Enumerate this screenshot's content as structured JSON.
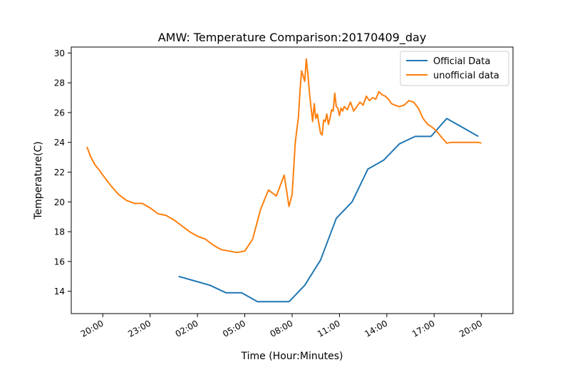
{
  "chart_data": {
    "type": "line",
    "title": "AMW: Temperature Comparison:20170409_day",
    "xlabel": "Time (Hour:Minutes)",
    "ylabel": "Temperature(C)",
    "x_unit": "hours since 20:00 on previous day",
    "xlim": [
      -2,
      26
    ],
    "ylim": [
      12.5,
      30.4
    ],
    "xticks": [
      {
        "value": 0,
        "label": "20:00"
      },
      {
        "value": 3,
        "label": "23:00"
      },
      {
        "value": 6,
        "label": "02:00"
      },
      {
        "value": 9,
        "label": "05:00"
      },
      {
        "value": 12,
        "label": "08:00"
      },
      {
        "value": 15,
        "label": "11:00"
      },
      {
        "value": 18,
        "label": "14:00"
      },
      {
        "value": 21,
        "label": "17:00"
      },
      {
        "value": 24,
        "label": "20:00"
      }
    ],
    "yticks": [
      14,
      16,
      18,
      20,
      22,
      24,
      26,
      28,
      30
    ],
    "legend_position": "top-right",
    "series": [
      {
        "name": "Official Data",
        "color": "#1f77b4",
        "x": [
          4.8,
          5.8,
          6.8,
          7.8,
          8.8,
          9.8,
          10.8,
          11.8,
          12.8,
          13.8,
          14.8,
          15.8,
          16.8,
          17.8,
          18.8,
          19.8,
          20.8,
          21.8,
          22.8,
          23.8
        ],
        "y": [
          15.0,
          14.7,
          14.4,
          13.9,
          13.9,
          13.3,
          13.3,
          13.3,
          14.4,
          16.1,
          18.9,
          20.0,
          22.2,
          22.8,
          23.9,
          24.4,
          24.4,
          25.6,
          25.0,
          24.4
        ]
      },
      {
        "name": "unofficial data",
        "color": "#ff7f0e",
        "x": [
          -1.0,
          -0.8,
          -0.5,
          -0.2,
          0.0,
          0.5,
          1.0,
          1.5,
          2.0,
          2.5,
          3.0,
          3.5,
          4.0,
          4.5,
          5.0,
          5.5,
          6.0,
          6.5,
          7.0,
          7.5,
          8.0,
          8.5,
          9.0,
          9.5,
          10.0,
          10.5,
          11.0,
          11.5,
          11.8,
          12.0,
          12.2,
          12.4,
          12.5,
          12.6,
          12.8,
          12.9,
          13.0,
          13.1,
          13.2,
          13.3,
          13.4,
          13.5,
          13.6,
          13.8,
          13.9,
          14.0,
          14.1,
          14.2,
          14.3,
          14.4,
          14.5,
          14.6,
          14.7,
          14.8,
          14.9,
          15.0,
          15.1,
          15.2,
          15.3,
          15.5,
          15.7,
          15.9,
          16.1,
          16.3,
          16.5,
          16.7,
          16.9,
          17.1,
          17.3,
          17.5,
          17.7,
          17.9,
          18.1,
          18.3,
          18.5,
          18.8,
          19.1,
          19.4,
          19.7,
          20.0,
          20.3,
          20.6,
          20.9,
          21.2,
          21.5,
          21.8,
          22.1,
          22.4,
          22.7,
          23.0,
          23.3,
          23.6,
          23.8,
          24.0
        ],
        "y": [
          23.7,
          23.1,
          22.5,
          22.1,
          21.8,
          21.1,
          20.5,
          20.1,
          19.9,
          19.9,
          19.6,
          19.2,
          19.1,
          18.8,
          18.4,
          18.0,
          17.7,
          17.5,
          17.1,
          16.8,
          16.7,
          16.6,
          16.7,
          17.5,
          19.5,
          20.8,
          20.4,
          21.8,
          19.7,
          20.5,
          24.0,
          25.7,
          27.5,
          28.8,
          28.1,
          29.6,
          28.6,
          27.3,
          26.3,
          25.4,
          26.6,
          25.6,
          25.9,
          24.6,
          24.5,
          25.5,
          25.4,
          25.9,
          25.2,
          25.6,
          26.2,
          26.1,
          27.3,
          26.4,
          26.3,
          25.8,
          26.3,
          26.1,
          26.4,
          26.2,
          26.7,
          26.1,
          26.4,
          26.7,
          26.5,
          27.1,
          26.8,
          27.0,
          26.9,
          27.4,
          27.2,
          27.1,
          26.9,
          26.6,
          26.5,
          26.4,
          26.5,
          26.8,
          26.7,
          26.3,
          25.6,
          25.2,
          25.0,
          24.7,
          24.3,
          23.95,
          24.0,
          24.0,
          24.0,
          24.0,
          24.0,
          24.0,
          24.0,
          23.95
        ]
      }
    ]
  }
}
